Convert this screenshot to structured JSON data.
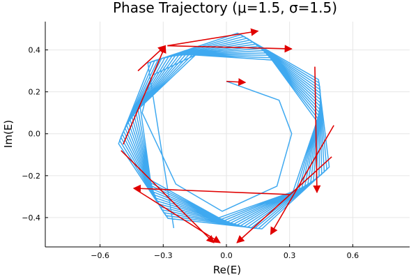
{
  "chart_data": {
    "type": "line",
    "title": "Phase Trajectory (μ=1.5, σ=1.5)",
    "xlabel": "Re(E)",
    "ylabel": "Im(E)",
    "xlim": [
      -0.86,
      0.87
    ],
    "ylim": [
      -0.54,
      0.535
    ],
    "xticks": [
      -0.6,
      -0.3,
      0.0,
      0.3,
      0.6
    ],
    "xtick_labels": [
      "−0.6",
      "−0.3",
      "0.0",
      "0.3",
      "0.6"
    ],
    "yticks": [
      -0.4,
      -0.2,
      0.0,
      0.2,
      0.4
    ],
    "ytick_labels": [
      "−0.4",
      "−0.2",
      "0.0",
      "0.2",
      "0.4"
    ],
    "grid": true,
    "legend": "none",
    "series": [
      {
        "color": "#3fa9f0",
        "initial_heptagon": [
          [
            0.0,
            0.25
          ],
          [
            0.25,
            0.16
          ],
          [
            0.31,
            0.0
          ],
          [
            0.24,
            -0.25
          ],
          [
            -0.02,
            -0.37
          ],
          [
            -0.24,
            -0.24
          ],
          [
            -0.4,
            0.1
          ],
          [
            -0.37,
            0.22
          ],
          [
            -0.35,
            0.28
          ]
        ],
        "outer_loops": 14,
        "outer_radius_start": 0.43,
        "outer_radius_end": 0.52,
        "end_point": [
          -0.25,
          -0.45
        ]
      }
    ],
    "arrows": {
      "color": "#e00000",
      "segments": [
        [
          0.0,
          0.25,
          0.09,
          0.245
        ],
        [
          -0.42,
          0.3,
          -0.29,
          0.42
        ],
        [
          -0.28,
          0.42,
          0.15,
          0.49
        ],
        [
          -0.28,
          0.42,
          0.31,
          0.405
        ],
        [
          -0.49,
          -0.05,
          -0.29,
          0.42
        ],
        [
          0.42,
          0.32,
          0.43,
          -0.28
        ],
        [
          0.51,
          0.04,
          0.21,
          -0.48
        ],
        [
          0.5,
          -0.11,
          0.05,
          -0.52
        ],
        [
          -0.5,
          -0.08,
          -0.06,
          -0.52
        ],
        [
          -0.44,
          -0.26,
          -0.03,
          -0.52
        ],
        [
          0.3,
          -0.29,
          -0.44,
          -0.26
        ]
      ]
    }
  }
}
